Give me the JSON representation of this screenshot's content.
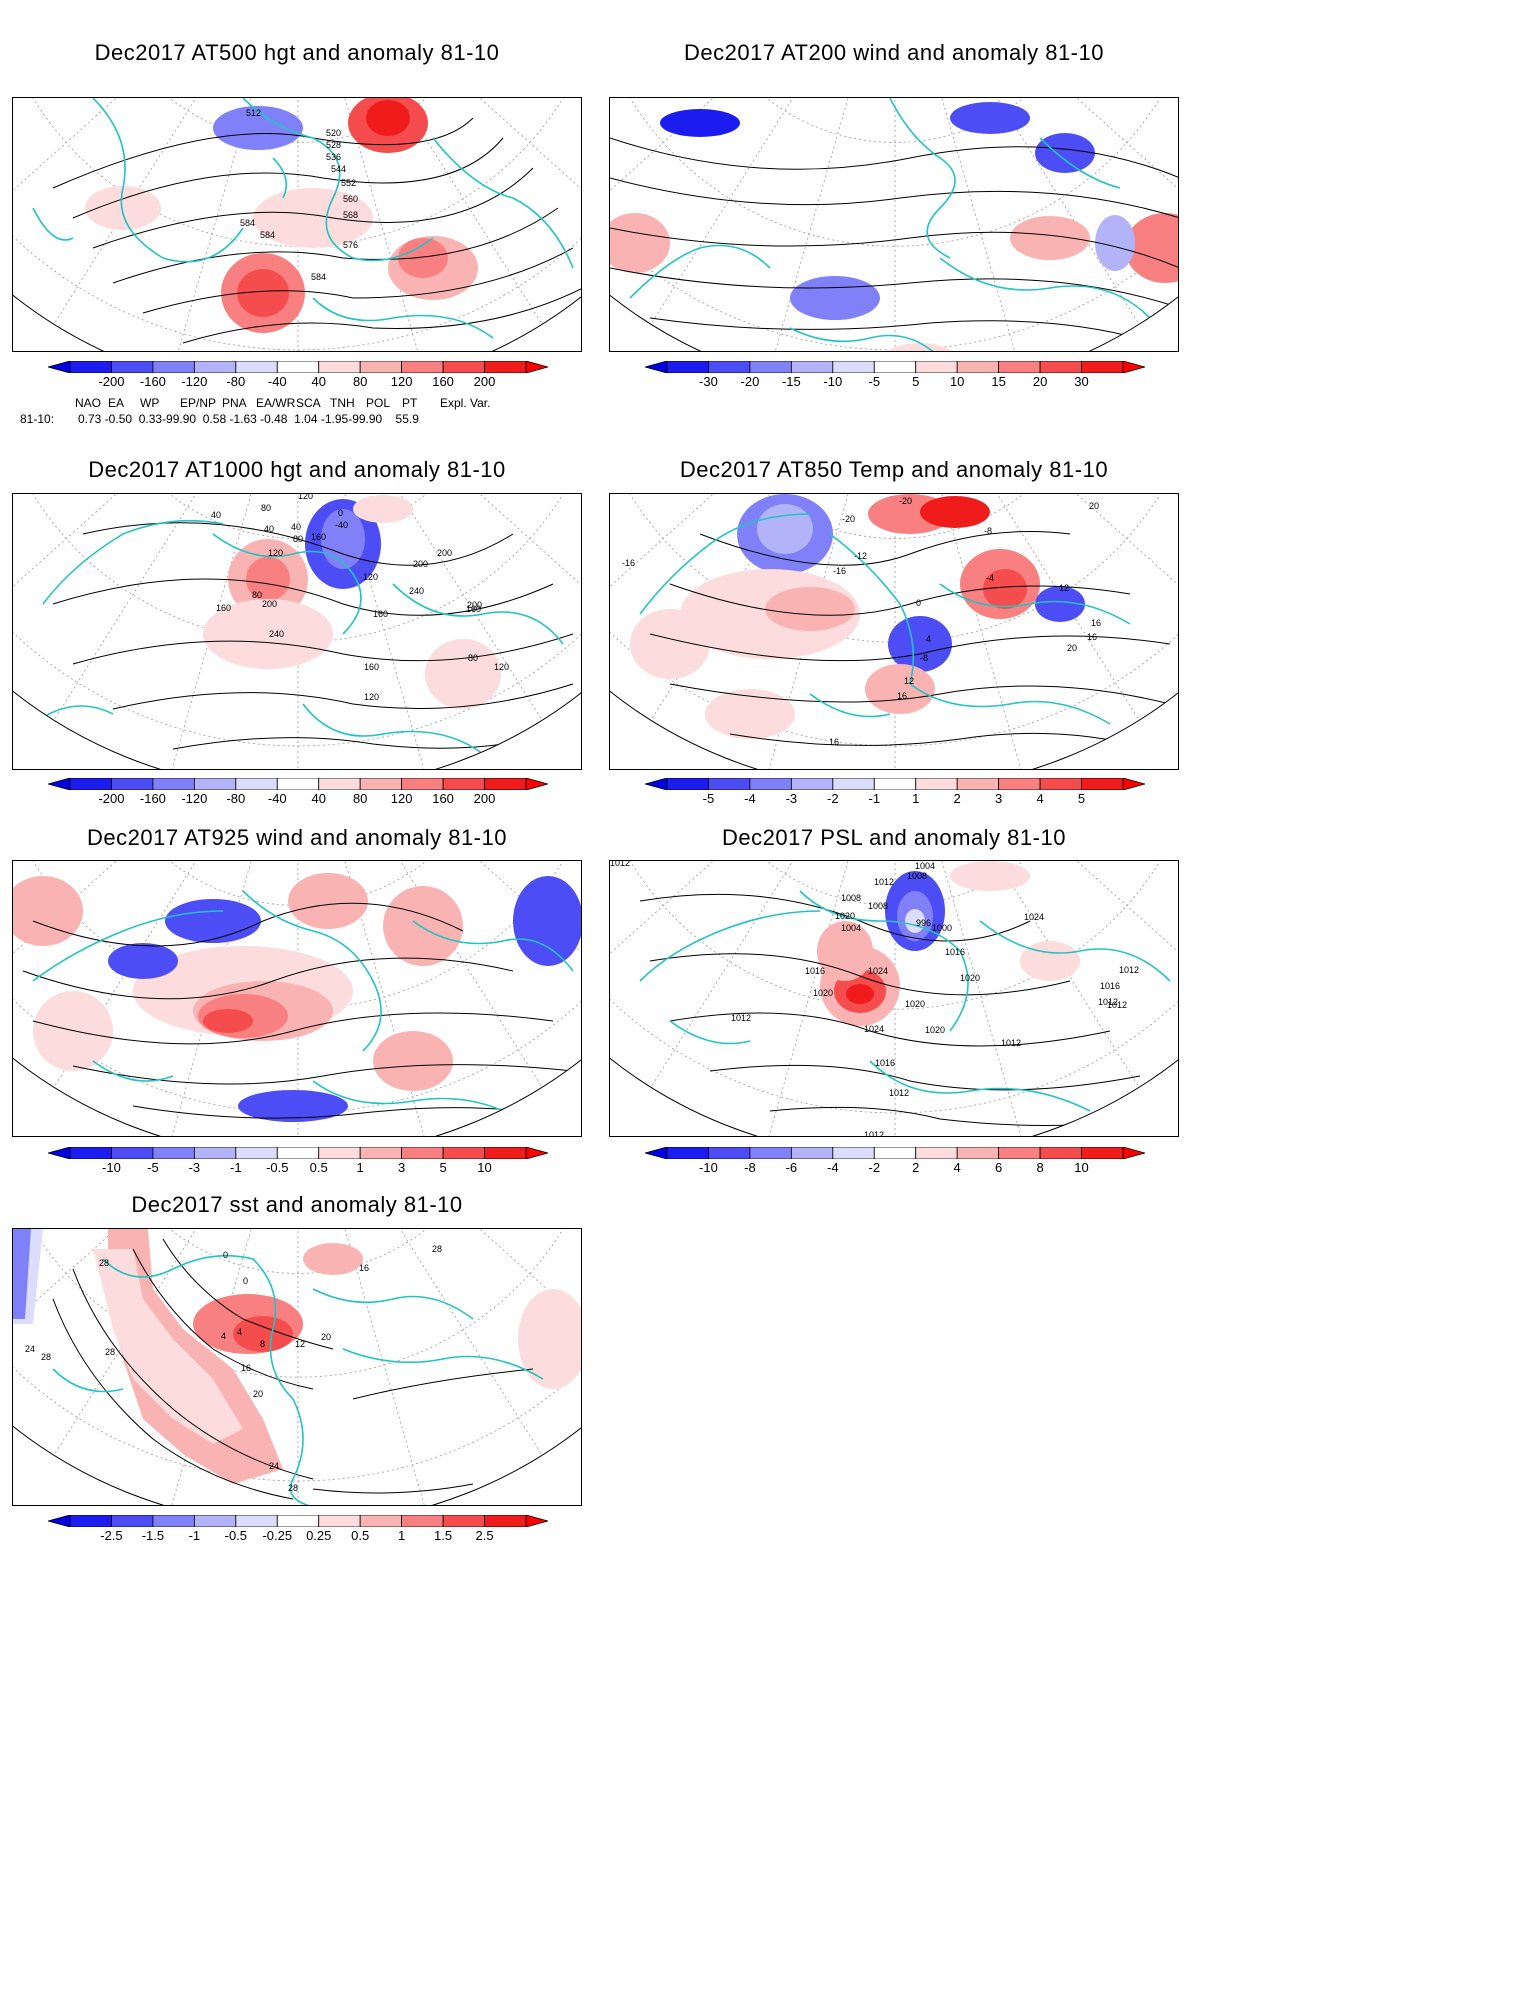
{
  "panels": [
    {
      "title": "Dec2017 AT500 hgt and anomaly 81-10",
      "ticks": [
        "-200",
        "-160",
        "-120",
        "-80",
        "-40",
        "40",
        "80",
        "120",
        "160",
        "200"
      ],
      "labels": [
        "512",
        "520",
        "528",
        "536",
        "544",
        "552",
        "560",
        "568",
        "576",
        "584",
        "584",
        "584"
      ]
    },
    {
      "title": "Dec2017 AT200 wind and anomaly 81-10",
      "ticks": [
        "-30",
        "-20",
        "-15",
        "-10",
        "-5",
        "5",
        "10",
        "15",
        "20",
        "30"
      ],
      "labels": []
    },
    {
      "title": "Dec2017 AT1000 hgt and anomaly 81-10",
      "ticks": [
        "-200",
        "-160",
        "-120",
        "-80",
        "-40",
        "40",
        "80",
        "120",
        "160",
        "200"
      ],
      "labels": [
        "120",
        "40",
        "80",
        "40",
        "0",
        "-40",
        "40",
        "80",
        "120",
        "160",
        "200",
        "200",
        "240",
        "80",
        "120",
        "160",
        "200",
        "240",
        "160",
        "200",
        "160",
        "120",
        "80",
        "120",
        "160"
      ]
    },
    {
      "title": "Dec2017 AT850 Temp and anomaly 81-10",
      "ticks": [
        "-5",
        "-4",
        "-3",
        "-2",
        "-1",
        "1",
        "2",
        "3",
        "4",
        "5"
      ],
      "labels": [
        "-20",
        "-20",
        "-8",
        "-12",
        "-16",
        "-4",
        "0",
        "12",
        "4",
        "-8",
        "12",
        "16",
        "20",
        "16",
        "16",
        "-16",
        "20",
        "16"
      ]
    },
    {
      "title": "Dec2017 AT925 wind and anomaly 81-10",
      "ticks": [
        "-10",
        "-5",
        "-3",
        "-1",
        "-0.5",
        "0.5",
        "1",
        "3",
        "5",
        "10"
      ],
      "labels": []
    },
    {
      "title": "Dec2017 PSL and anomaly 81-10",
      "ticks": [
        "-10",
        "-8",
        "-6",
        "-4",
        "-2",
        "2",
        "4",
        "6",
        "8",
        "10"
      ],
      "labels": [
        "1012",
        "1012",
        "1008",
        "1004",
        "1008",
        "1020",
        "1004",
        "1008",
        "996",
        "1000",
        "1016",
        "1024",
        "1020",
        "1016",
        "1024",
        "1020",
        "1020",
        "1012",
        "1012",
        "1024",
        "1020",
        "1016",
        "1012",
        "1012",
        "1016",
        "1012",
        "1012",
        "1012"
      ]
    },
    {
      "title": "Dec2017 sst and anomaly 81-10",
      "ticks": [
        "-2.5",
        "-1.5",
        "-1",
        "-0.5",
        "-0.25",
        "0.25",
        "0.5",
        "1",
        "1.5",
        "2.5"
      ],
      "labels": [
        "28",
        "28",
        "24",
        "28",
        "0",
        "0",
        "4",
        "4",
        "8",
        "12",
        "16",
        "20",
        "24",
        "28",
        "28",
        "16",
        "20",
        "28"
      ]
    }
  ],
  "teleconnection": {
    "headers": [
      "NAO",
      "EA",
      "WP",
      "EP/NP",
      "PNA",
      "EA/WR",
      "SCA",
      "TNH",
      "POL",
      "PT",
      "Expl. Var."
    ],
    "row_label": "81-10:",
    "values": "0.73 -0.50  0.33-99.90  0.58 -1.63 -0.48  1.04 -1.95-99.90    55.9"
  },
  "colors": {
    "blue": [
      "#1c1cf0",
      "#4d4df5",
      "#8080f8",
      "#b3b3fa",
      "#dcdcfc"
    ],
    "red": [
      "#fcdcdc",
      "#fab3b3",
      "#f88080",
      "#f54d4d",
      "#f01c1c"
    ],
    "coast": "#22c3c3"
  }
}
